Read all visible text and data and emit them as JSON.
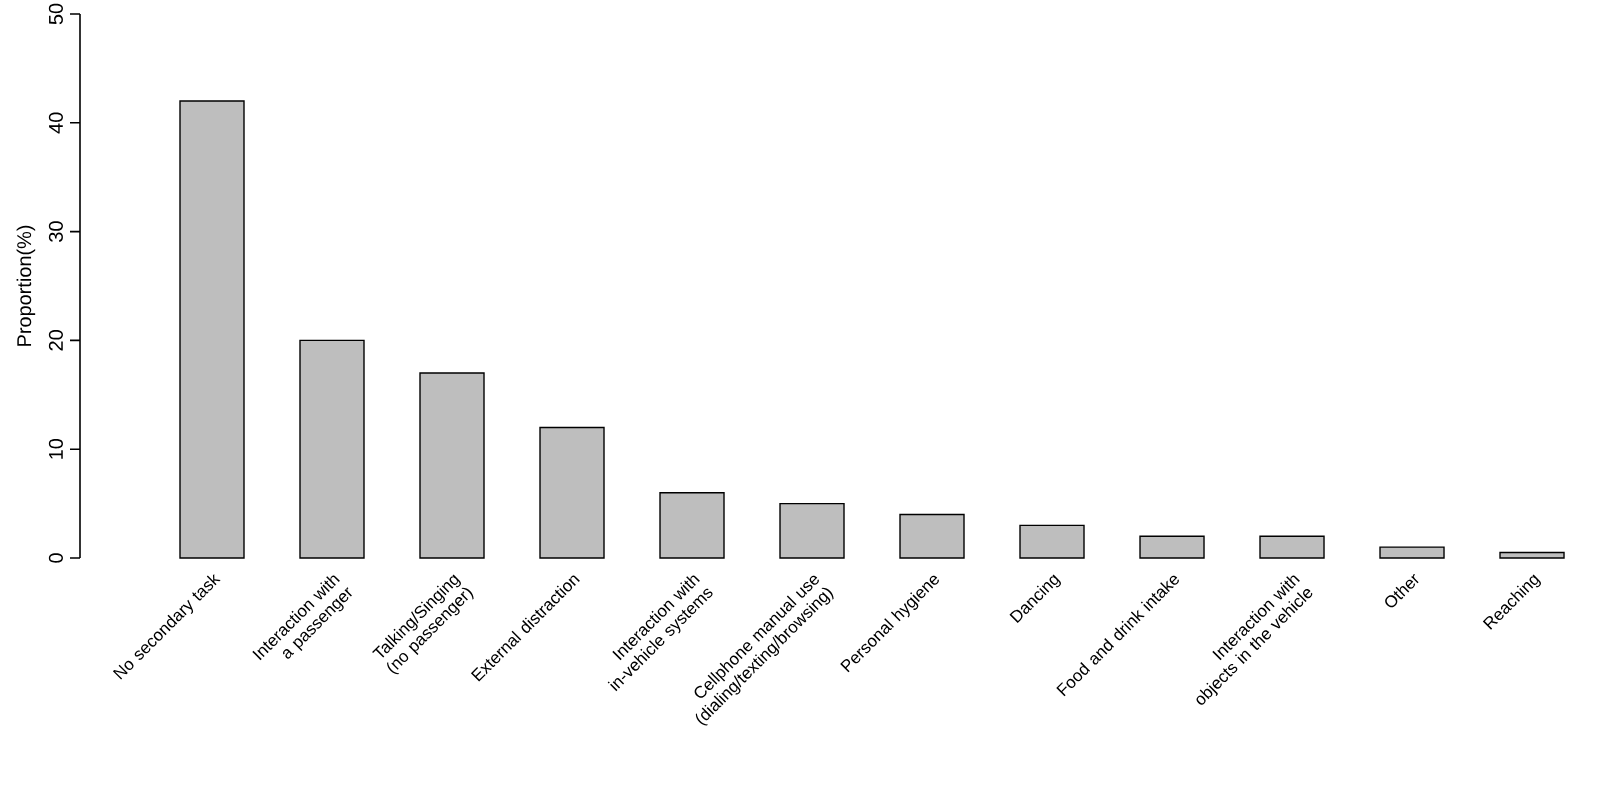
{
  "chart_data": {
    "type": "bar",
    "ylabel": "Proportion(%)",
    "categories": [
      "No secondary task",
      "Interaction with a passenger",
      "Talking/Singing (no passenger)",
      "External distraction",
      "Interaction with in-vehicle systems",
      "Cellphone manual use (dialing/texting/browsing)",
      "Personal hygiene",
      "Dancing",
      "Food and drink intake",
      "Interaction with objects in the vehicle",
      "Other",
      "Reaching"
    ],
    "values": [
      42,
      20,
      17,
      12,
      6,
      5,
      4,
      3,
      2,
      2,
      1,
      0.5
    ],
    "color": "#bebebe",
    "ylim": [
      0,
      50
    ],
    "yticks": [
      0,
      10,
      20,
      30,
      40,
      50
    ],
    "grid": false
  }
}
